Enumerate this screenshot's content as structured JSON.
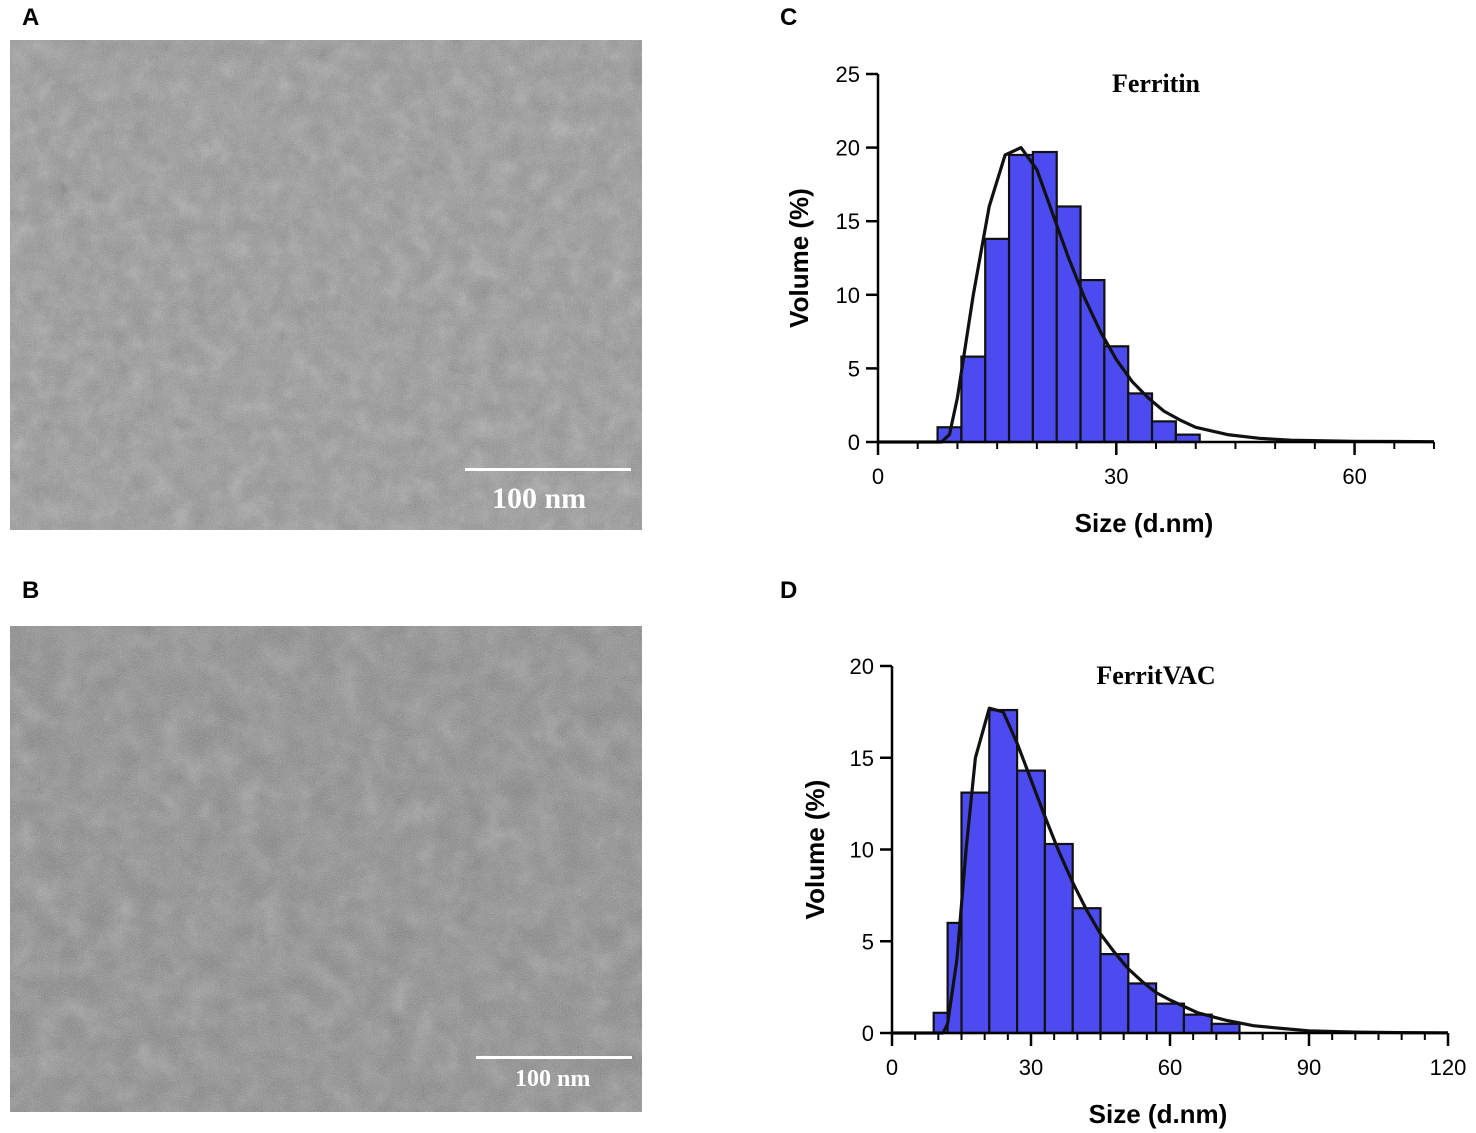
{
  "panels": {
    "a": {
      "label": "A",
      "scalebar_text": "100 nm"
    },
    "b": {
      "label": "B",
      "scalebar_text": "100 nm"
    },
    "c": {
      "label": "C"
    },
    "d": {
      "label": "D"
    }
  },
  "colors": {
    "bar_fill": "#4b4bf0",
    "bar_stroke": "#111111",
    "curve": "#111111",
    "axis": "#000000"
  },
  "chart_data": [
    {
      "type": "bar",
      "title": "Ferritin",
      "xlabel": "Size (d.nm)",
      "ylabel": "Volume (%)",
      "xlim": [
        0,
        70
      ],
      "ylim": [
        0,
        25
      ],
      "xticks": [
        0,
        30,
        60
      ],
      "yticks": [
        0,
        5,
        10,
        15,
        20,
        25
      ],
      "bin_width": 3,
      "bins": [
        {
          "x": 9,
          "value": 1.0
        },
        {
          "x": 12,
          "value": 5.8
        },
        {
          "x": 15,
          "value": 13.8
        },
        {
          "x": 18,
          "value": 19.5
        },
        {
          "x": 21,
          "value": 19.7
        },
        {
          "x": 24,
          "value": 16.0
        },
        {
          "x": 27,
          "value": 11.0
        },
        {
          "x": 30,
          "value": 6.5
        },
        {
          "x": 33,
          "value": 3.3
        },
        {
          "x": 36,
          "value": 1.4
        },
        {
          "x": 39,
          "value": 0.5
        }
      ],
      "fit_curve": [
        [
          0,
          0
        ],
        [
          8,
          0
        ],
        [
          9,
          0.5
        ],
        [
          10,
          3
        ],
        [
          12,
          10
        ],
        [
          14,
          16
        ],
        [
          16,
          19.5
        ],
        [
          18,
          20
        ],
        [
          20,
          18.5
        ],
        [
          22,
          15.5
        ],
        [
          24,
          12.5
        ],
        [
          26,
          9.8
        ],
        [
          28,
          7.5
        ],
        [
          30,
          5.6
        ],
        [
          32,
          4.1
        ],
        [
          34,
          3.0
        ],
        [
          36,
          2.1
        ],
        [
          38,
          1.5
        ],
        [
          40,
          1.0
        ],
        [
          44,
          0.5
        ],
        [
          48,
          0.25
        ],
        [
          52,
          0.12
        ],
        [
          60,
          0.05
        ],
        [
          70,
          0.02
        ]
      ]
    },
    {
      "type": "bar",
      "title": "FerritVAC",
      "xlabel": "Size (d.nm)",
      "ylabel": "Volume (%)",
      "xlim": [
        0,
        120
      ],
      "ylim": [
        0,
        20
      ],
      "xticks": [
        0,
        30,
        60,
        90,
        120
      ],
      "yticks": [
        0,
        5,
        10,
        15,
        20
      ],
      "bin_width": 6,
      "bins": [
        {
          "x": 12,
          "value": 1.1
        },
        {
          "x": 15,
          "value": 6.0
        },
        {
          "x": 18,
          "value": 13.1
        },
        {
          "x": 24,
          "value": 17.6
        },
        {
          "x": 30,
          "value": 14.3
        },
        {
          "x": 36,
          "value": 10.3
        },
        {
          "x": 42,
          "value": 6.8
        },
        {
          "x": 48,
          "value": 4.3
        },
        {
          "x": 54,
          "value": 2.7
        },
        {
          "x": 60,
          "value": 1.6
        },
        {
          "x": 66,
          "value": 1.0
        },
        {
          "x": 72,
          "value": 0.5
        }
      ],
      "fit_curve": [
        [
          0,
          0
        ],
        [
          11,
          0
        ],
        [
          12,
          0.5
        ],
        [
          14,
          4
        ],
        [
          16,
          10
        ],
        [
          18,
          15
        ],
        [
          21,
          17.7
        ],
        [
          24,
          17.5
        ],
        [
          27,
          15.8
        ],
        [
          30,
          13.8
        ],
        [
          33,
          11.8
        ],
        [
          36,
          9.9
        ],
        [
          39,
          8.2
        ],
        [
          42,
          6.7
        ],
        [
          45,
          5.4
        ],
        [
          48,
          4.4
        ],
        [
          51,
          3.5
        ],
        [
          54,
          2.8
        ],
        [
          57,
          2.2
        ],
        [
          60,
          1.8
        ],
        [
          66,
          1.1
        ],
        [
          72,
          0.7
        ],
        [
          78,
          0.4
        ],
        [
          84,
          0.25
        ],
        [
          90,
          0.12
        ],
        [
          100,
          0.05
        ],
        [
          110,
          0.02
        ],
        [
          120,
          0.01
        ]
      ]
    }
  ]
}
